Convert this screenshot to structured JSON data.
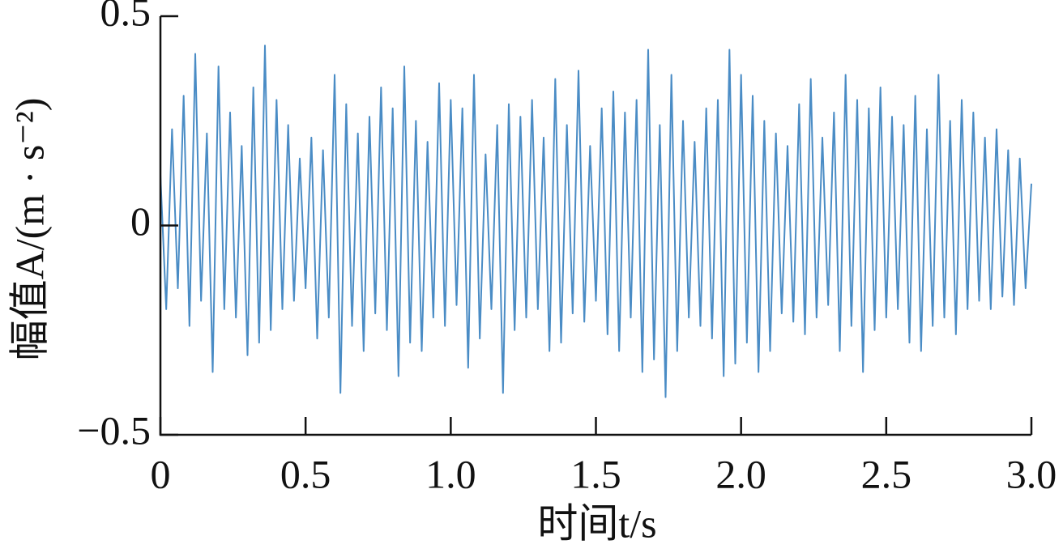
{
  "chart_data": {
    "type": "line",
    "xlabel": "时间t/s",
    "ylabel": "幅值A/(m · s⁻²)",
    "color": "#4a8cc5",
    "xlim": [
      0,
      3
    ],
    "ylim": [
      -0.5,
      0.5
    ],
    "xticks": [
      0,
      0.5,
      {
        "value": 1,
        "label": "1.0"
      },
      1.5,
      {
        "value": 2,
        "label": "2.0"
      },
      2.5,
      {
        "value": 3,
        "label": "3.0"
      }
    ],
    "yticks": [
      {
        "value": -0.5,
        "label": "−0.5"
      },
      0,
      0.5
    ],
    "x": [
      0,
      0.02,
      0.04,
      0.06,
      0.08,
      0.1,
      0.12,
      0.14,
      0.16,
      0.18,
      0.2,
      0.22,
      0.24,
      0.26,
      0.28,
      0.3,
      0.32,
      0.34,
      0.36,
      0.38,
      0.4,
      0.42,
      0.44,
      0.46,
      0.48,
      0.5,
      0.52,
      0.54,
      0.56,
      0.58,
      0.6,
      0.62,
      0.64,
      0.66,
      0.68,
      0.7,
      0.72,
      0.74,
      0.76,
      0.78,
      0.8,
      0.82,
      0.84,
      0.86,
      0.88,
      0.9,
      0.92,
      0.94,
      0.96,
      0.98,
      1,
      1.02,
      1.04,
      1.06,
      1.08,
      1.1,
      1.12,
      1.14,
      1.16,
      1.18,
      1.2,
      1.22,
      1.24,
      1.26,
      1.28,
      1.3,
      1.32,
      1.34,
      1.36,
      1.38,
      1.4,
      1.42,
      1.44,
      1.46,
      1.48,
      1.5,
      1.52,
      1.54,
      1.56,
      1.58,
      1.6,
      1.62,
      1.64,
      1.66,
      1.68,
      1.7,
      1.72,
      1.74,
      1.76,
      1.78,
      1.8,
      1.82,
      1.84,
      1.86,
      1.88,
      1.9,
      1.92,
      1.94,
      1.96,
      1.98,
      2,
      2.02,
      2.04,
      2.06,
      2.08,
      2.1,
      2.12,
      2.14,
      2.16,
      2.18,
      2.2,
      2.22,
      2.24,
      2.26,
      2.28,
      2.3,
      2.32,
      2.34,
      2.36,
      2.38,
      2.4,
      2.42,
      2.44,
      2.46,
      2.48,
      2.5,
      2.52,
      2.54,
      2.56,
      2.58,
      2.6,
      2.62,
      2.64,
      2.66,
      2.68,
      2.7,
      2.72,
      2.74,
      2.76,
      2.78,
      2.8,
      2.82,
      2.84,
      2.86,
      2.88,
      2.9,
      2.92,
      2.94,
      2.96,
      2.98,
      3
    ],
    "values": [
      0.12,
      -0.2,
      0.23,
      -0.15,
      0.31,
      -0.24,
      0.41,
      -0.18,
      0.22,
      -0.35,
      0.38,
      -0.2,
      0.27,
      -0.22,
      0.19,
      -0.31,
      0.33,
      -0.28,
      0.43,
      -0.25,
      0.3,
      -0.2,
      0.24,
      -0.18,
      0.16,
      -0.15,
      0.21,
      -0.27,
      0.18,
      -0.22,
      0.36,
      -0.4,
      0.29,
      -0.24,
      0.22,
      -0.3,
      0.26,
      -0.21,
      0.33,
      -0.25,
      0.28,
      -0.36,
      0.38,
      -0.28,
      0.25,
      -0.3,
      0.2,
      -0.22,
      0.34,
      -0.24,
      0.3,
      -0.19,
      0.28,
      -0.34,
      0.36,
      -0.27,
      0.17,
      -0.2,
      0.24,
      -0.4,
      0.29,
      -0.25,
      0.26,
      -0.22,
      0.3,
      -0.2,
      0.21,
      -0.3,
      0.35,
      -0.28,
      0.24,
      -0.21,
      0.37,
      -0.23,
      0.19,
      -0.18,
      0.28,
      -0.26,
      0.32,
      -0.3,
      0.27,
      -0.22,
      0.3,
      -0.35,
      0.42,
      -0.32,
      0.24,
      -0.41,
      0.36,
      -0.3,
      0.25,
      -0.22,
      0.2,
      -0.24,
      0.28,
      -0.27,
      0.3,
      -0.36,
      0.42,
      -0.33,
      0.36,
      -0.28,
      0.31,
      -0.35,
      0.25,
      -0.3,
      0.22,
      -0.21,
      0.19,
      -0.23,
      0.29,
      -0.26,
      0.35,
      -0.22,
      0.21,
      -0.19,
      0.27,
      -0.3,
      0.36,
      -0.24,
      0.3,
      -0.35,
      0.28,
      -0.25,
      0.33,
      -0.22,
      0.26,
      -0.2,
      0.24,
      -0.28,
      0.31,
      -0.3,
      0.23,
      -0.24,
      0.36,
      -0.22,
      0.25,
      -0.26,
      0.3,
      -0.2,
      0.27,
      -0.18,
      0.21,
      -0.2,
      0.23,
      -0.17,
      0.18,
      -0.19,
      0.16,
      -0.15,
      0.1
    ]
  }
}
